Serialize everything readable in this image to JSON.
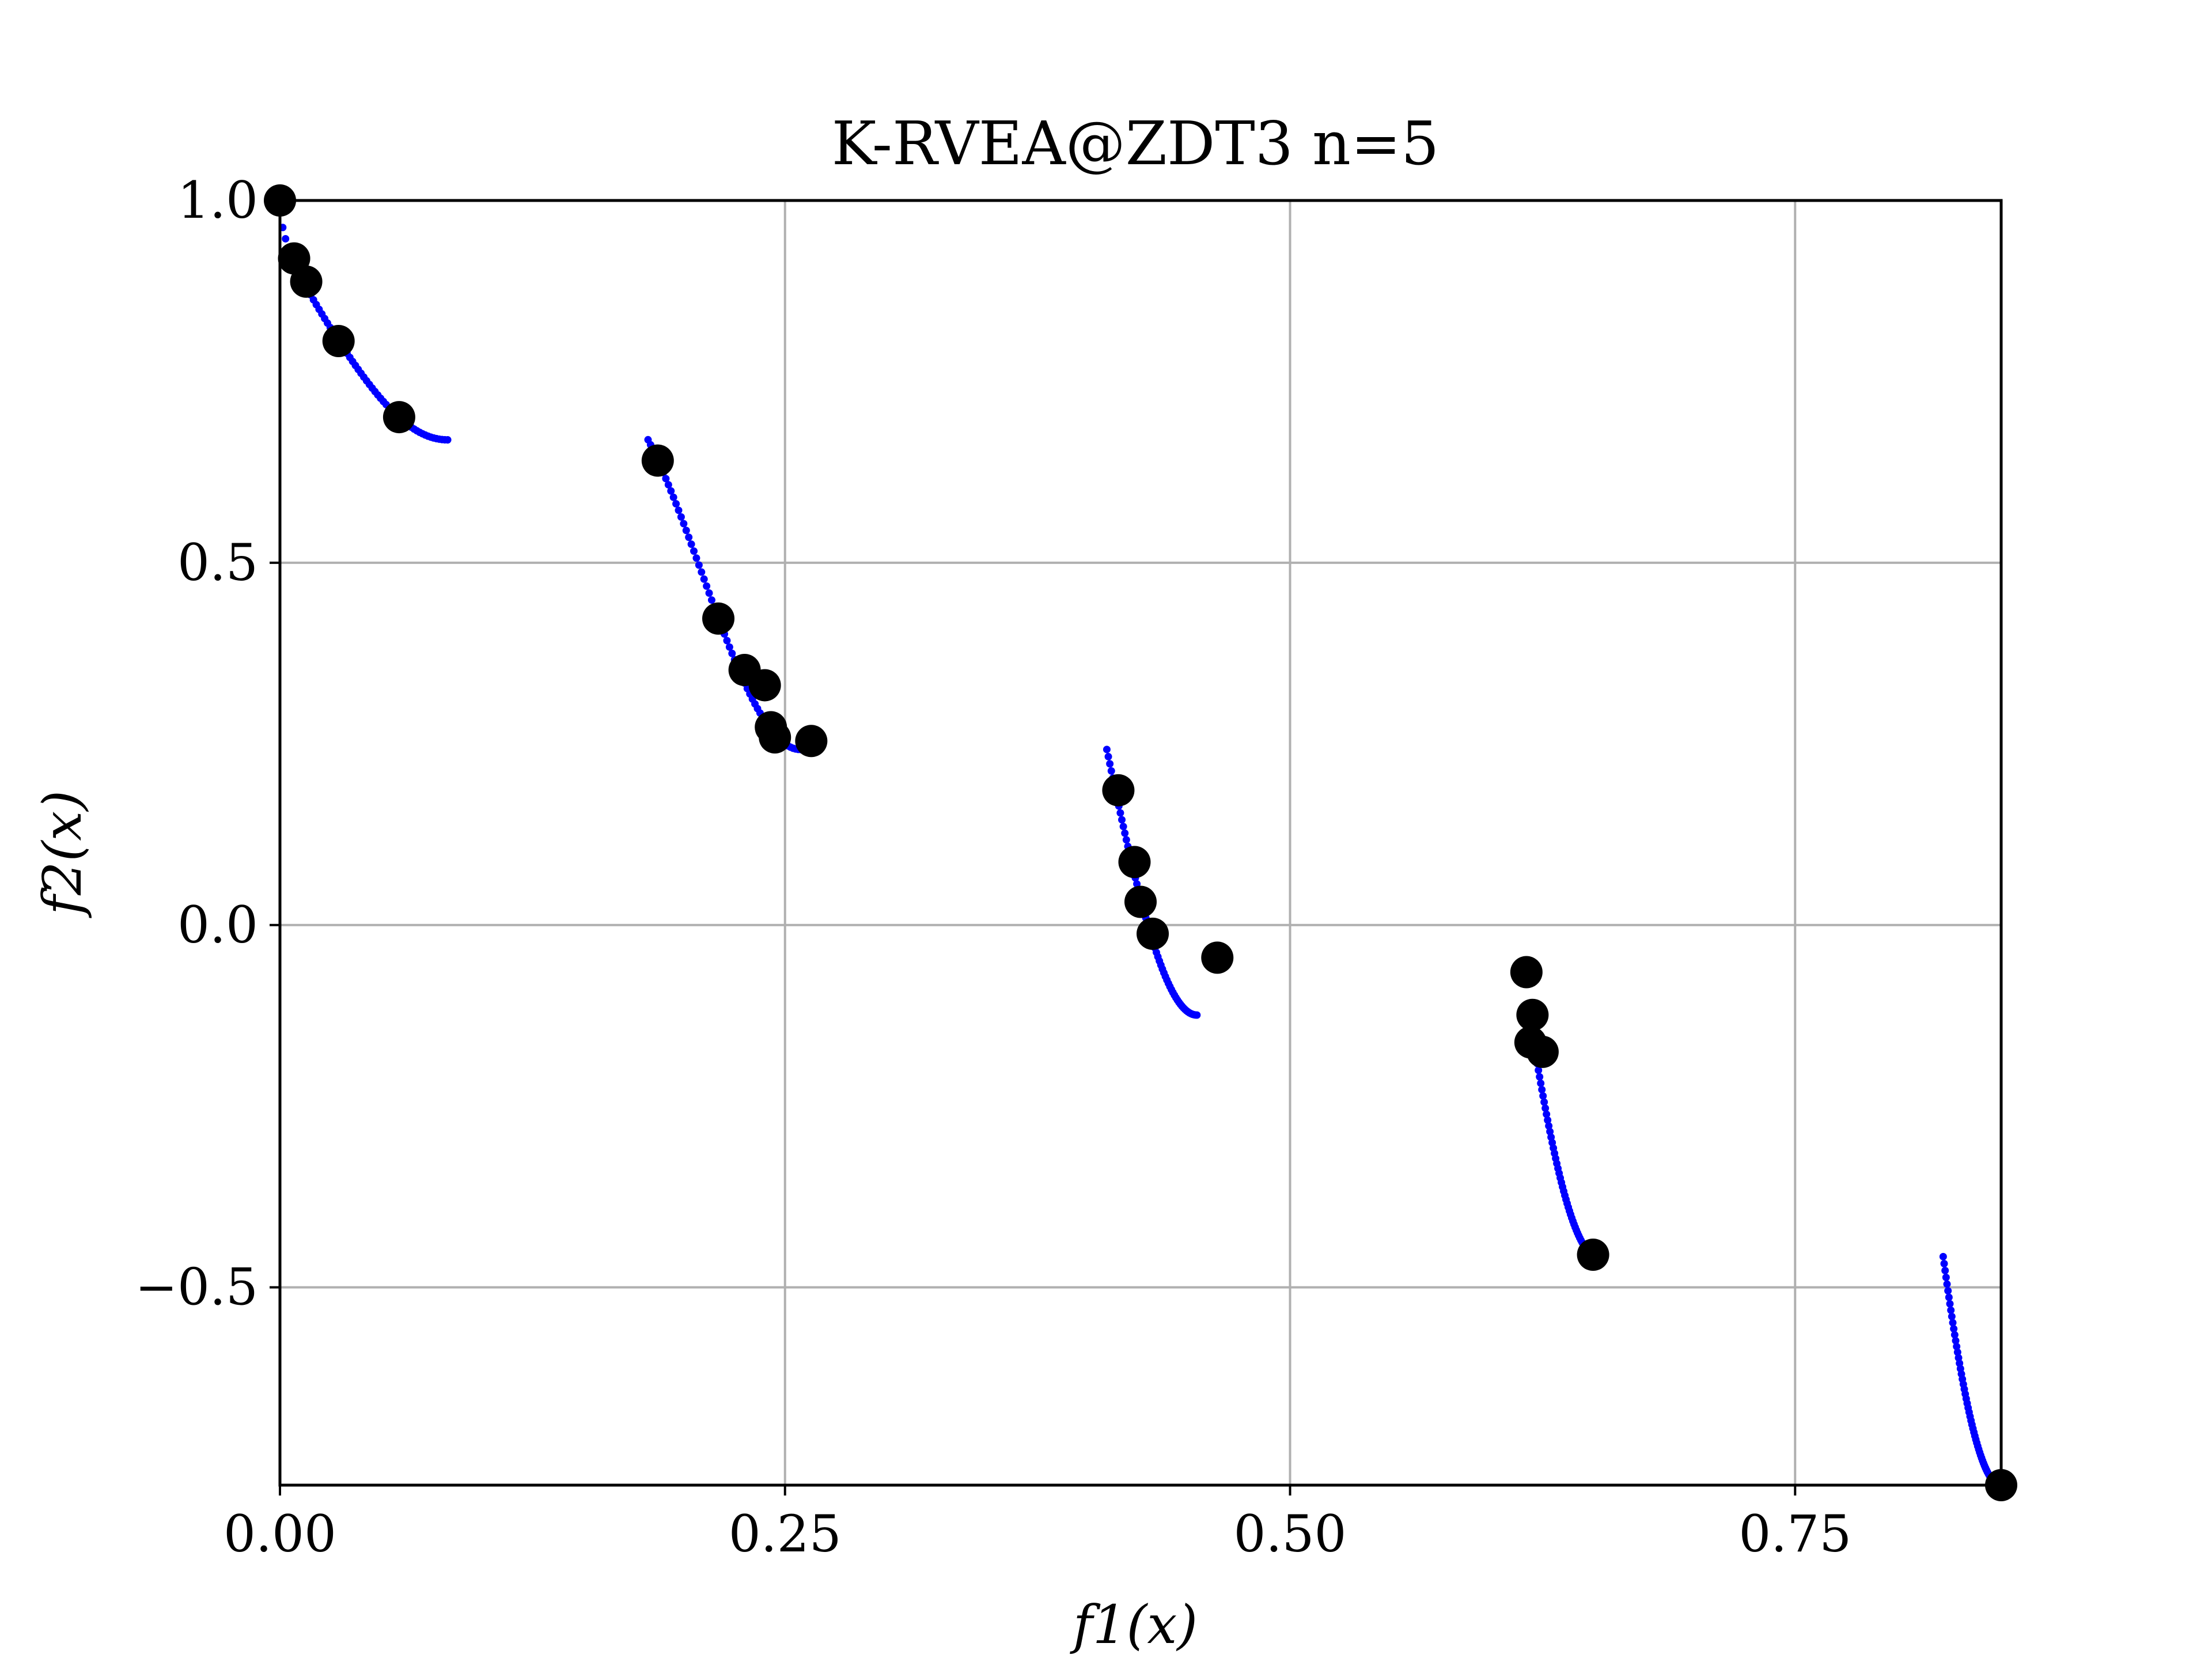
{
  "chart_data": {
    "type": "scatter",
    "title": "K-RVEA@ZDT3 n=5",
    "xlabel": "f1(x)",
    "ylabel": "f2(x)",
    "xlim": [
      0.0,
      0.852
    ],
    "ylim": [
      -0.773,
      1.0
    ],
    "x_ticks": [
      0.0,
      0.25,
      0.5,
      0.75
    ],
    "x_tick_labels": [
      "0.00",
      "0.25",
      "0.50",
      "0.75"
    ],
    "y_ticks": [
      1.0,
      0.5,
      0.0,
      -0.5
    ],
    "y_tick_labels": [
      "1.0",
      "0.5",
      "0.0",
      "−0.5"
    ],
    "grid": true,
    "legend": false,
    "front_color": "#0000ff",
    "solution_color": "#000000",
    "pareto_front_segments": [
      [
        0.0,
        0.083
      ],
      [
        0.1822,
        0.2578
      ],
      [
        0.4093,
        0.4539
      ],
      [
        0.6184,
        0.6525
      ],
      [
        0.8233,
        0.8518
      ]
    ],
    "series": [
      {
        "values": [
          [
            0.0,
            1.0
          ],
          [
            0.007,
            0.92
          ],
          [
            0.013,
            0.888
          ],
          [
            0.029,
            0.806
          ],
          [
            0.059,
            0.701
          ],
          [
            0.187,
            0.641
          ],
          [
            0.217,
            0.423
          ],
          [
            0.23,
            0.352
          ],
          [
            0.24,
            0.331
          ],
          [
            0.243,
            0.273
          ],
          [
            0.245,
            0.259
          ],
          [
            0.263,
            0.254
          ],
          [
            0.415,
            0.186
          ],
          [
            0.423,
            0.087
          ],
          [
            0.426,
            0.032
          ],
          [
            0.432,
            -0.012
          ],
          [
            0.464,
            -0.045
          ],
          [
            0.617,
            -0.065
          ],
          [
            0.62,
            -0.124
          ],
          [
            0.619,
            -0.162
          ],
          [
            0.625,
            -0.175
          ],
          [
            0.65,
            -0.455
          ],
          [
            0.852,
            -0.773
          ]
        ]
      }
    ]
  }
}
